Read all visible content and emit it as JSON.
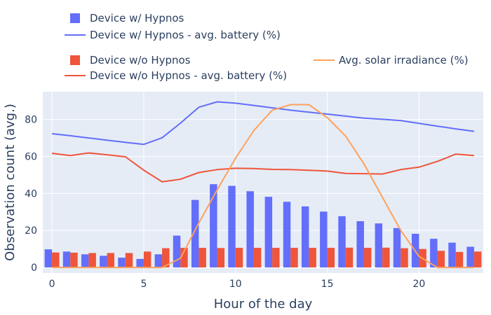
{
  "chart_data": {
    "type": "bar",
    "xlabel": "Hour of the day",
    "ylabel": "Observation count (avg.)",
    "x": [
      0,
      1,
      2,
      3,
      4,
      5,
      6,
      7,
      8,
      9,
      10,
      11,
      12,
      13,
      14,
      15,
      16,
      17,
      18,
      19,
      20,
      21,
      22,
      23
    ],
    "x_ticks": [
      0,
      5,
      10,
      15,
      20
    ],
    "y_ticks": [
      0,
      20,
      40,
      60,
      80
    ],
    "xlim": [
      -0.5,
      23.5
    ],
    "ylim": [
      -3,
      95
    ],
    "grid": true,
    "legend_position": "top",
    "series": [
      {
        "name": "Device w/ Hypnos",
        "kind": "bar",
        "color": "#636efa",
        "values": [
          9.8,
          8.6,
          7.1,
          6.3,
          5.3,
          4.6,
          7.1,
          17.2,
          36.5,
          45.0,
          44.1,
          41.2,
          38.2,
          35.5,
          33.0,
          30.2,
          27.7,
          25.0,
          23.8,
          21.3,
          18.2,
          15.5,
          13.4,
          11.2
        ]
      },
      {
        "name": "Device w/ Hypnos - avg. battery (%)",
        "kind": "line",
        "color": "#636efa",
        "values": [
          72.3,
          71.2,
          70.0,
          68.8,
          67.6,
          66.5,
          70.1,
          78.0,
          86.6,
          89.5,
          88.8,
          87.6,
          86.3,
          85.0,
          83.9,
          82.9,
          81.8,
          80.7,
          80.1,
          79.4,
          77.9,
          76.4,
          74.9,
          73.6
        ]
      },
      {
        "name": "Device w/o Hypnos",
        "kind": "bar",
        "color": "#ef553b",
        "values": [
          8.1,
          8.0,
          7.8,
          7.8,
          7.8,
          8.6,
          10.4,
          10.6,
          10.6,
          10.5,
          10.6,
          10.6,
          10.6,
          10.6,
          10.6,
          10.6,
          10.7,
          10.6,
          10.7,
          10.4,
          10.0,
          9.0,
          8.4,
          8.6
        ]
      },
      {
        "name": "Device w/o Hypnos - avg. battery (%)",
        "kind": "line",
        "color": "#ef553b",
        "values": [
          61.7,
          60.5,
          61.9,
          60.9,
          59.8,
          52.6,
          46.3,
          47.7,
          51.3,
          52.9,
          53.6,
          53.5,
          53.0,
          52.9,
          52.5,
          52.1,
          50.8,
          50.7,
          50.5,
          52.9,
          54.2,
          57.3,
          61.3,
          60.5
        ]
      },
      {
        "name": "Avg. solar irradiance (%)",
        "kind": "line",
        "color": "#ffa15a",
        "values": [
          0,
          0,
          0,
          0,
          0,
          0,
          0,
          5,
          24,
          42,
          59,
          74,
          85,
          88,
          88,
          81,
          71,
          56,
          38,
          20,
          6,
          0,
          0,
          0
        ]
      }
    ]
  }
}
